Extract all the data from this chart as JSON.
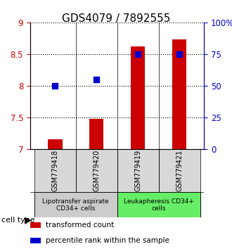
{
  "title": "GDS4079 / 7892555",
  "samples": [
    "GSM779418",
    "GSM779420",
    "GSM779419",
    "GSM779421"
  ],
  "transformed_counts": [
    7.15,
    7.47,
    8.62,
    8.73
  ],
  "percentile_ranks": [
    50,
    55,
    75,
    75
  ],
  "ylim_left": [
    7,
    9
  ],
  "ylim_right": [
    0,
    100
  ],
  "yticks_left": [
    7,
    7.5,
    8,
    8.5,
    9
  ],
  "yticks_right": [
    0,
    25,
    50,
    75,
    100
  ],
  "ytick_labels_right": [
    "0",
    "25",
    "50",
    "75",
    "100%"
  ],
  "bar_color": "#cc0000",
  "dot_color": "#0000cc",
  "bar_bottom": 7.0,
  "groups": [
    {
      "label": "Lipotransfer aspirate\nCD34+ cells",
      "samples": [
        0,
        1
      ],
      "color": "#cccccc"
    },
    {
      "label": "Leukapheresis CD34+\ncells",
      "samples": [
        2,
        3
      ],
      "color": "#66ee66"
    }
  ],
  "cell_type_label": "cell type",
  "legend_items": [
    {
      "color": "#cc0000",
      "label": "transformed count"
    },
    {
      "color": "#0000cc",
      "label": "percentile rank within the sample"
    }
  ],
  "grid_linestyle": "dotted",
  "title_fontsize": 11,
  "tick_fontsize": 8.5,
  "label_fontsize": 8
}
